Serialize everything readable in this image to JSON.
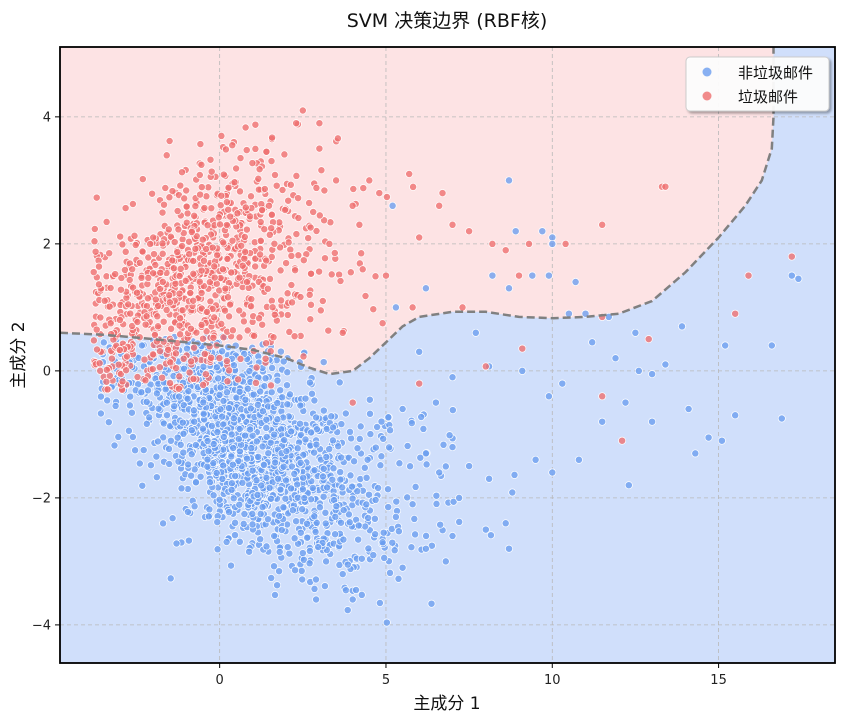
{
  "chart_data": {
    "type": "scatter",
    "title": "SVM 决策边界 (RBF核)",
    "xlabel": "主成分 1",
    "ylabel": "主成分 2",
    "xlim": [
      -4.8,
      18.5
    ],
    "ylim": [
      -4.6,
      5.1
    ],
    "xticks": [
      0,
      5,
      10,
      15
    ],
    "yticks": [
      -4,
      -2,
      0,
      2,
      4
    ],
    "grid": true,
    "legend_position": "top-right",
    "region_colors": {
      "non_spam": "#d0dffb",
      "spam": "#fde3e4"
    },
    "boundary_color": "#808080",
    "decision_boundary": [
      [
        -4.8,
        0.6
      ],
      [
        -3.5,
        0.57
      ],
      [
        -2.0,
        0.5
      ],
      [
        -1.0,
        0.45
      ],
      [
        0.0,
        0.4
      ],
      [
        1.0,
        0.33
      ],
      [
        2.0,
        0.2
      ],
      [
        2.7,
        0.05
      ],
      [
        3.3,
        -0.05
      ],
      [
        4.0,
        0.0
      ],
      [
        4.5,
        0.2
      ],
      [
        5.0,
        0.45
      ],
      [
        5.5,
        0.7
      ],
      [
        6.0,
        0.85
      ],
      [
        7.0,
        0.93
      ],
      [
        8.0,
        0.93
      ],
      [
        9.0,
        0.85
      ],
      [
        10.0,
        0.83
      ],
      [
        11.0,
        0.85
      ],
      [
        12.0,
        0.9
      ],
      [
        13.0,
        1.1
      ],
      [
        14.0,
        1.55
      ],
      [
        15.0,
        2.1
      ],
      [
        15.8,
        2.6
      ],
      [
        16.3,
        3.0
      ],
      [
        16.6,
        3.5
      ],
      [
        16.65,
        4.0
      ],
      [
        16.65,
        5.1
      ]
    ],
    "series": [
      {
        "name": "非垃圾邮件",
        "color": "#6a9ef0",
        "cluster": {
          "center": [
            0.8,
            -1.1
          ],
          "spread": [
            1.7,
            0.75
          ]
        },
        "outliers": [
          [
            5.2,
            2.6
          ],
          [
            8.7,
            3.0
          ],
          [
            9.7,
            2.2
          ],
          [
            8.9,
            2.2
          ],
          [
            10.0,
            2.1
          ],
          [
            10.7,
            1.4
          ],
          [
            10.5,
            0.9
          ],
          [
            11.7,
            0.85
          ],
          [
            12.5,
            0.6
          ],
          [
            13.0,
            -0.05
          ],
          [
            12.2,
            -0.5
          ],
          [
            13.0,
            -0.8
          ],
          [
            13.9,
            0.7
          ],
          [
            14.1,
            -0.6
          ],
          [
            14.3,
            -1.3
          ],
          [
            15.2,
            0.4
          ],
          [
            15.5,
            -0.7
          ],
          [
            16.6,
            0.4
          ],
          [
            16.9,
            -0.75
          ],
          [
            17.4,
            1.45
          ],
          [
            17.2,
            1.5
          ],
          [
            12.3,
            -1.8
          ],
          [
            11.5,
            -0.8
          ],
          [
            10.8,
            -1.4
          ],
          [
            10.0,
            -1.6
          ],
          [
            9.5,
            -1.4
          ],
          [
            8.6,
            -2.4
          ],
          [
            8.7,
            -2.8
          ],
          [
            8.0,
            -2.5
          ],
          [
            7.0,
            -2.6
          ],
          [
            6.8,
            -3.0
          ],
          [
            6.2,
            -2.8
          ],
          [
            5.5,
            -3.1
          ],
          [
            4.1,
            -3.45
          ],
          [
            4.0,
            -3.6
          ],
          [
            3.7,
            -3.2
          ],
          [
            3.2,
            -3.0
          ],
          [
            2.9,
            -3.6
          ],
          [
            7.5,
            -1.5
          ],
          [
            8.1,
            -1.7
          ],
          [
            7.2,
            -2.0
          ],
          [
            6.5,
            -0.5
          ],
          [
            7.0,
            -0.1
          ],
          [
            8.1,
            0.07
          ],
          [
            9.1,
            0.0
          ],
          [
            9.9,
            -0.4
          ],
          [
            10.3,
            -0.2
          ],
          [
            11.2,
            0.45
          ],
          [
            11.9,
            0.2
          ],
          [
            12.6,
            0.0
          ],
          [
            14.7,
            -1.05
          ],
          [
            13.4,
            0.1
          ],
          [
            15.1,
            -1.1
          ],
          [
            11.0,
            0.9
          ],
          [
            9.9,
            1.5
          ],
          [
            8.2,
            1.5
          ],
          [
            8.7,
            1.3
          ],
          [
            9.4,
            1.5
          ],
          [
            10.0,
            2.0
          ],
          [
            6.2,
            1.3
          ],
          [
            5.3,
            1.0
          ],
          [
            7.7,
            0.6
          ],
          [
            6.0,
            0.3
          ],
          [
            5.5,
            -0.6
          ],
          [
            6.2,
            -1.3
          ],
          [
            7.0,
            -1.2
          ],
          [
            5.8,
            -2.1
          ],
          [
            6.6,
            -1.6
          ],
          [
            4.9,
            -2.7
          ],
          [
            5.3,
            -2.3
          ]
        ]
      },
      {
        "name": "垃圾邮件",
        "color": "#ee6e6e",
        "cluster": {
          "center": [
            -0.6,
            1.4
          ],
          "spread": [
            1.9,
            0.85
          ]
        },
        "outliers": [
          [
            2.5,
            4.1
          ],
          [
            2.3,
            3.9
          ],
          [
            3.0,
            3.9
          ],
          [
            3.5,
            3.0
          ],
          [
            4.5,
            3.0
          ],
          [
            5.7,
            3.1
          ],
          [
            6.6,
            2.6
          ],
          [
            6.7,
            2.8
          ],
          [
            7.0,
            2.3
          ],
          [
            7.5,
            2.2
          ],
          [
            8.2,
            2.0
          ],
          [
            8.6,
            1.9
          ],
          [
            9.3,
            2.0
          ],
          [
            10.4,
            2.0
          ],
          [
            9.0,
            1.5
          ],
          [
            11.5,
            2.3
          ],
          [
            13.3,
            2.9
          ],
          [
            13.4,
            2.9
          ],
          [
            15.9,
            1.5
          ],
          [
            17.2,
            1.8
          ],
          [
            15.5,
            0.9
          ],
          [
            12.9,
            0.5
          ],
          [
            12.1,
            -1.1
          ],
          [
            11.5,
            0.85
          ],
          [
            11.5,
            -0.4
          ],
          [
            9.1,
            0.35
          ],
          [
            8.0,
            0.07
          ],
          [
            6.0,
            -0.2
          ],
          [
            4.0,
            -0.5
          ],
          [
            3.0,
            3.5
          ],
          [
            4.3,
            1.6
          ],
          [
            5.0,
            1.5
          ],
          [
            5.8,
            1.0
          ],
          [
            7.3,
            1.0
          ],
          [
            4.9,
            0.75
          ],
          [
            3.7,
            0.6
          ],
          [
            4.2,
            2.3
          ],
          [
            4.8,
            2.8
          ],
          [
            6.0,
            2.1
          ],
          [
            3.3,
            2.0
          ],
          [
            3.1,
            1.1
          ]
        ]
      }
    ]
  },
  "legend": {
    "items": [
      {
        "label": "非垃圾邮件",
        "color": "#6a9ef0"
      },
      {
        "label": "垃圾邮件",
        "color": "#ee6e6e"
      }
    ]
  }
}
